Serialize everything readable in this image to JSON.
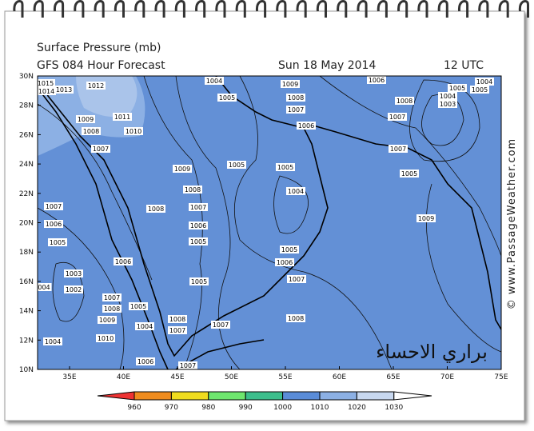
{
  "header": {
    "title": "Surface Pressure (mb)",
    "model": "GFS 084 Hour Forecast",
    "date": "Sun 18 May 2014",
    "time": "12 UTC"
  },
  "lat_labels": [
    "30N",
    "28N",
    "26N",
    "24N",
    "22N",
    "20N",
    "18N",
    "16N",
    "14N",
    "12N",
    "10N"
  ],
  "lon_labels": [
    "35E",
    "40E",
    "45E",
    "50E",
    "55E",
    "60E",
    "65E",
    "70E",
    "75E"
  ],
  "contour_labels": [
    "1015",
    "1014",
    "1013",
    "1012",
    "1011",
    "1010",
    "1009",
    "1008",
    "1007",
    "1009",
    "1008",
    "1008",
    "1007",
    "1006",
    "1005",
    "1006",
    "1005",
    "1007",
    "1006",
    "1005",
    "1003",
    "1002",
    "004",
    "1007",
    "1008",
    "1009",
    "1005",
    "1004",
    "1008",
    "1007",
    "1007",
    "1010",
    "1004",
    "1006",
    "1007",
    "1004",
    "1005",
    "1009",
    "1008",
    "1007",
    "1006",
    "1005",
    "1005",
    "1004",
    "1005",
    "1006",
    "1007",
    "1008",
    "1006",
    "1008",
    "1007",
    "1004",
    "1003",
    "1005",
    "1004",
    "1005",
    "1007",
    "1005",
    "1009"
  ],
  "overlay_text": "براري الاحساء",
  "watermark": "© www.PassageWeather.com",
  "colorbar": {
    "labels": [
      "960",
      "970",
      "980",
      "990",
      "1000",
      "1010",
      "1020",
      "1030"
    ],
    "colors": [
      "#ee3333",
      "#f08c1e",
      "#f0dc1e",
      "#6ee66e",
      "#3cbe8c",
      "#5a8cd8",
      "#8cb0e4",
      "#c8d8f0",
      "#ffffff"
    ]
  }
}
